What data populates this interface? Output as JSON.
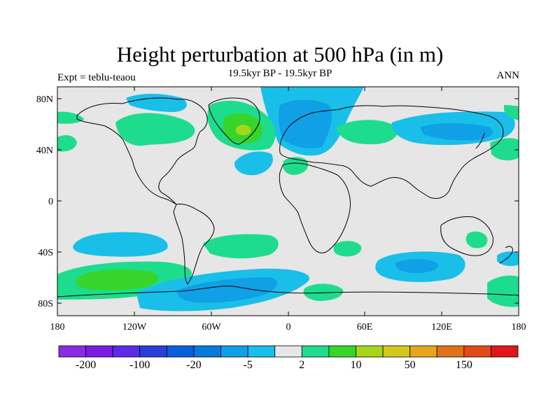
{
  "title": "Height perturbation at 500 hPa (in m)",
  "subtitle": "19.5kyr BP - 19.5kyr BP",
  "left_label": "Expt = teblu-teaou",
  "right_label": "ANN",
  "lat_labels": [
    "80N",
    "40N",
    "0",
    "40S",
    "80S"
  ],
  "lon_labels": [
    "180",
    "120W",
    "60W",
    "0",
    "60E",
    "120E",
    "180"
  ],
  "colors": {
    "background": "#e6e6e6",
    "light_blue": "#19bfe8",
    "mid_blue": "#0fa0e6",
    "dark_blue": "#0a79d9",
    "light_green": "#1edc8e",
    "mid_green": "#37d52b",
    "yellow_green": "#a6d61a"
  },
  "colorbar": {
    "colors": [
      "#8a2be2",
      "#7a1be0",
      "#5a2ce6",
      "#2a3fd8",
      "#0a5fd8",
      "#0a79d9",
      "#0fa0e6",
      "#19bfe8",
      "#e6e6e6",
      "#1edc8e",
      "#37d52b",
      "#a6d61a",
      "#d6c81a",
      "#e6a51a",
      "#e0731a",
      "#e04b1a",
      "#e0161a"
    ],
    "labels": [
      "-200",
      "-100",
      "-20",
      "-5",
      "2",
      "10",
      "50",
      "150"
    ]
  }
}
